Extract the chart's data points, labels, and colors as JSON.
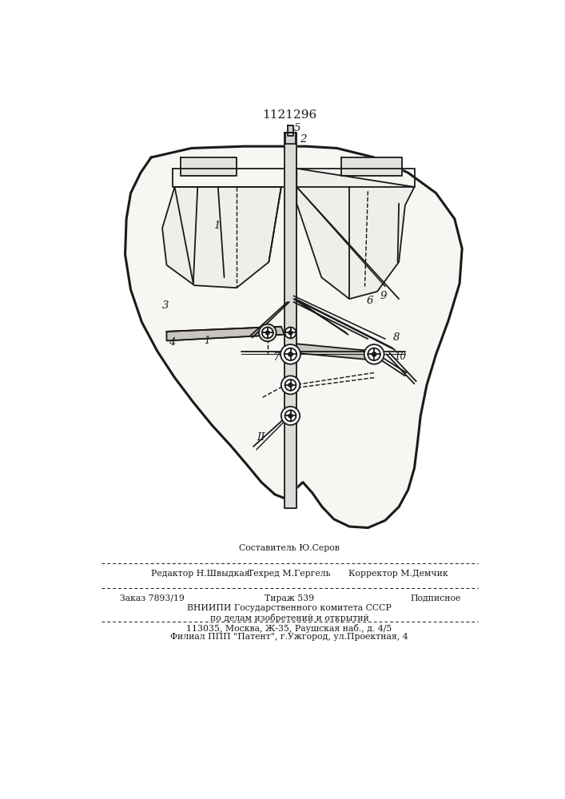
{
  "title": "1121296",
  "line_color": "#1a1a1a",
  "line_width": 1.3,
  "footer": {
    "line1_center": "Составитель Ю.Серов",
    "line2_left": "Редактор Н.Швыдкая",
    "line2_mid": "Техред М.Гергель",
    "line2_right": "Корректор М.Демчик",
    "line3_left": "Заказ 7893/19",
    "line3_mid": "Тираж 539",
    "line3_right": "Подписное",
    "line4": "ВНИИПИ Государственного комитета СССР",
    "line5": "по делам изобретений и открытий",
    "line6": "113035, Москва, Ж-35, Раушская наб., д. 4/5",
    "line7": "Филиал ППП \"Патент\", г.Ужгород, ул.Проектная, 4"
  }
}
